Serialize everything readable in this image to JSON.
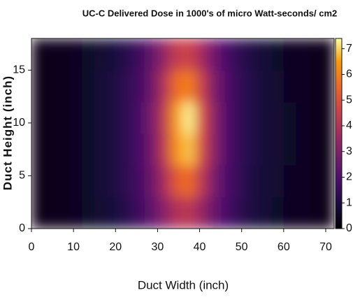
{
  "chart_data": {
    "type": "heatmap",
    "title": "UC-C Delivered Dose in 1000's of micro Watt-seconds/ cm2",
    "x_label": "Duct Width (inch)",
    "y_label": "Duct Height (inch)",
    "colormap": "inferno",
    "x": [
      1.5,
      4.5,
      7.5,
      10.5,
      13.5,
      16.5,
      19.5,
      22.5,
      25.5,
      28.5,
      31.5,
      34.5,
      37.5,
      40.5,
      43.5,
      46.5,
      49.5,
      52.5,
      55.5,
      58.5,
      61.5,
      64.5,
      67.5,
      70.5
    ],
    "y": [
      1.5,
      4.5,
      7.5,
      10.5,
      13.5,
      16.5
    ],
    "z": [
      [
        0.3,
        0.4,
        0.4,
        0.5,
        0.6,
        0.7,
        0.9,
        1.2,
        1.6,
        2.2,
        3.1,
        4.0,
        4.2,
        3.4,
        2.5,
        1.8,
        1.3,
        1.0,
        0.8,
        0.6,
        0.5,
        0.5,
        0.4,
        0.3
      ],
      [
        0.3,
        0.4,
        0.4,
        0.5,
        0.6,
        0.8,
        1.0,
        1.3,
        1.7,
        2.5,
        3.7,
        5.2,
        5.6,
        4.2,
        2.8,
        1.9,
        1.4,
        1.0,
        0.8,
        0.7,
        0.5,
        0.5,
        0.4,
        0.3
      ],
      [
        0.3,
        0.4,
        0.4,
        0.5,
        0.6,
        0.8,
        1.0,
        1.3,
        1.8,
        2.6,
        4.2,
        6.3,
        6.9,
        4.8,
        3.1,
        2.0,
        1.4,
        1.1,
        0.8,
        0.7,
        0.6,
        0.5,
        0.4,
        0.3
      ],
      [
        0.3,
        0.4,
        0.4,
        0.5,
        0.6,
        0.8,
        1.0,
        1.3,
        1.8,
        2.7,
        4.2,
        6.5,
        7.3,
        4.9,
        3.1,
        2.0,
        1.4,
        1.1,
        0.8,
        0.7,
        0.6,
        0.5,
        0.4,
        0.3
      ],
      [
        0.3,
        0.4,
        0.4,
        0.5,
        0.6,
        0.8,
        1.0,
        1.3,
        1.7,
        2.5,
        3.9,
        5.6,
        6.0,
        4.5,
        2.9,
        2.0,
        1.4,
        1.1,
        0.8,
        0.7,
        0.5,
        0.5,
        0.4,
        0.3
      ],
      [
        0.3,
        0.4,
        0.4,
        0.5,
        0.6,
        0.7,
        0.9,
        1.2,
        1.6,
        2.3,
        3.3,
        4.4,
        4.6,
        3.7,
        2.6,
        1.8,
        1.3,
        1.0,
        0.8,
        0.6,
        0.5,
        0.5,
        0.4,
        0.3
      ]
    ],
    "xlim": [
      0,
      72
    ],
    "xticks": [
      0,
      10,
      20,
      30,
      40,
      50,
      60,
      70
    ],
    "ylim": [
      0,
      18
    ],
    "yticks": [
      0,
      5,
      10,
      15
    ],
    "clim": [
      0,
      7.4
    ],
    "cticks": [
      0,
      1,
      2,
      3,
      4,
      5,
      6,
      7
    ]
  }
}
